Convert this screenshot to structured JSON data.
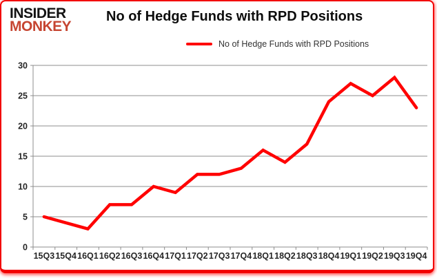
{
  "logo": {
    "line1": "INSIDER",
    "line2": "MONKEY"
  },
  "header": {
    "title": "No of Hedge Funds with RPD Positions"
  },
  "legend": {
    "label": "No of Hedge Funds with RPD Positions"
  },
  "chart_data": {
    "type": "line",
    "title": "No of Hedge Funds with RPD Positions",
    "categories": [
      "15Q3",
      "15Q4",
      "16Q1",
      "16Q2",
      "16Q3",
      "16Q4",
      "17Q1",
      "17Q2",
      "17Q3",
      "17Q4",
      "18Q1",
      "18Q2",
      "18Q3",
      "18Q4",
      "19Q1",
      "19Q2",
      "19Q3",
      "19Q4"
    ],
    "series": [
      {
        "name": "No of Hedge Funds with RPD Positions",
        "values": [
          5,
          4,
          3,
          7,
          7,
          10,
          9,
          12,
          12,
          13,
          16,
          14,
          17,
          24,
          27,
          25,
          28,
          23
        ]
      }
    ],
    "xlabel": "",
    "ylabel": "",
    "ylim": [
      0,
      30
    ],
    "y_ticks": [
      0,
      5,
      10,
      15,
      20,
      25,
      30
    ],
    "grid": true,
    "legend_position": "top",
    "line_color": "#ff0000",
    "grid_color": "#8c8c8c",
    "label_color": "#262626"
  }
}
